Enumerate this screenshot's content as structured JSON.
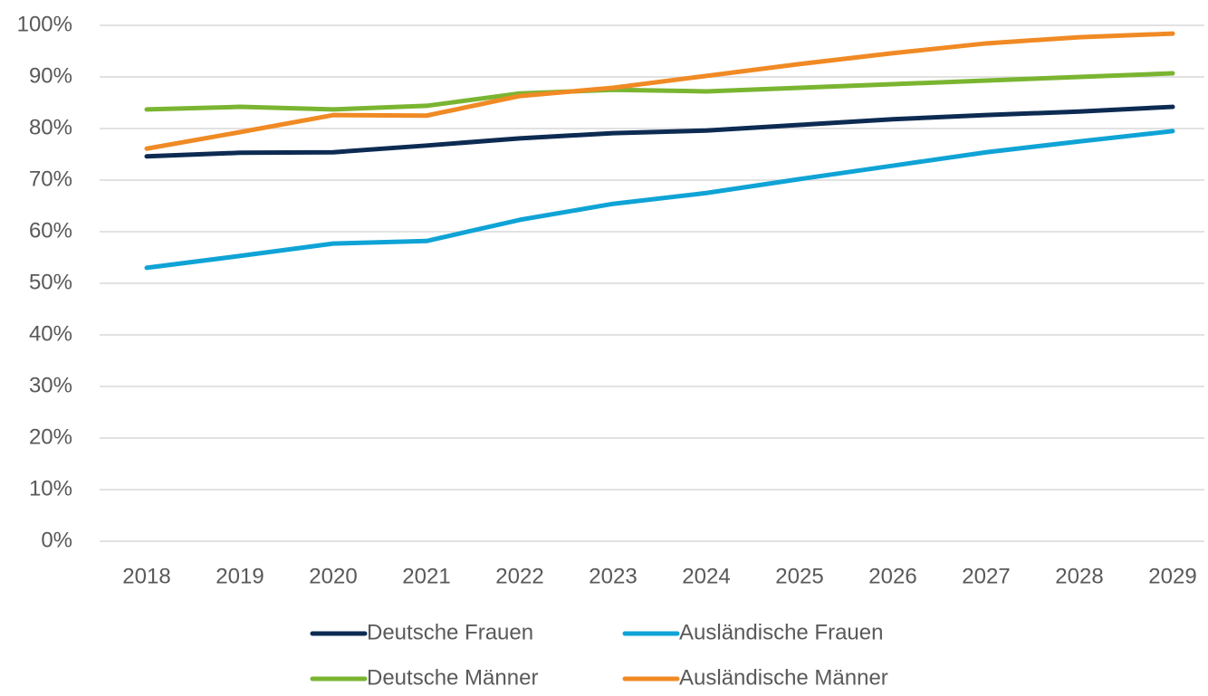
{
  "chart_data": {
    "type": "line",
    "categories": [
      "2018",
      "2019",
      "2020",
      "2021",
      "2022",
      "2023",
      "2024",
      "2025",
      "2026",
      "2027",
      "2028",
      "2029"
    ],
    "series": [
      {
        "name": "Deutsche Frauen",
        "color": "#0d2b52",
        "values": [
          74.6,
          75.3,
          75.4,
          76.7,
          78.1,
          79.1,
          79.6,
          80.7,
          81.8,
          82.6,
          83.3,
          84.2
        ]
      },
      {
        "name": "Ausländische Frauen",
        "color": "#0fa3d6",
        "values": [
          53.0,
          55.3,
          57.7,
          58.2,
          62.3,
          65.4,
          67.5,
          70.2,
          72.8,
          75.4,
          77.5,
          79.5
        ]
      },
      {
        "name": "Deutsche Männer",
        "color": "#7ab531",
        "values": [
          83.7,
          84.2,
          83.7,
          84.4,
          86.8,
          87.5,
          87.2,
          87.9,
          88.6,
          89.3,
          90.0,
          90.7
        ]
      },
      {
        "name": "Ausländische Männer",
        "color": "#f08a24",
        "values": [
          76.1,
          79.3,
          82.6,
          82.5,
          86.3,
          87.9,
          90.2,
          92.5,
          94.6,
          96.5,
          97.7,
          98.4
        ]
      }
    ],
    "ylim": [
      0,
      100
    ],
    "yticks": [
      {
        "value": 0,
        "label": "0%"
      },
      {
        "value": 10,
        "label": "10%"
      },
      {
        "value": 20,
        "label": "20%"
      },
      {
        "value": 30,
        "label": "30%"
      },
      {
        "value": 40,
        "label": "40%"
      },
      {
        "value": 50,
        "label": "50%"
      },
      {
        "value": 60,
        "label": "60%"
      },
      {
        "value": 70,
        "label": "70%"
      },
      {
        "value": 80,
        "label": "80%"
      },
      {
        "value": 90,
        "label": "90%"
      },
      {
        "value": 100,
        "label": "100%"
      }
    ],
    "grid": true,
    "legend": "bottom"
  }
}
